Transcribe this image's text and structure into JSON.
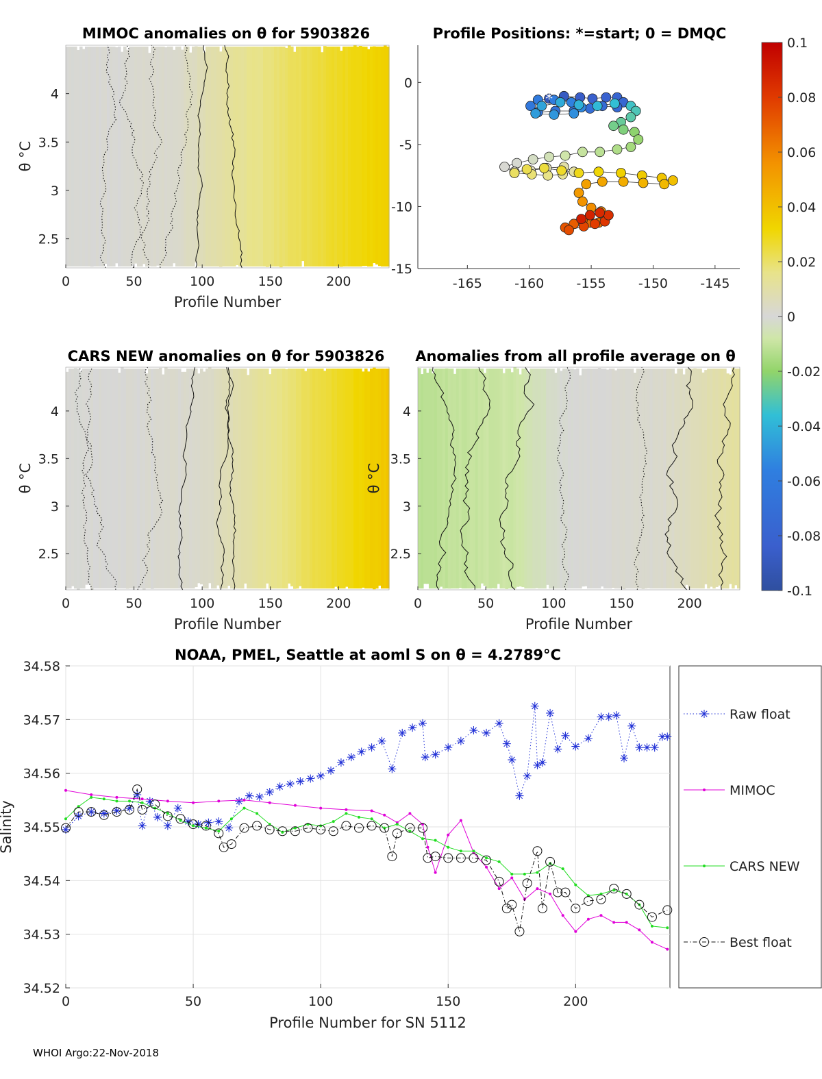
{
  "footer": "WHOI Argo:22-Nov-2018",
  "colorbar": {
    "ticks": [
      "0.1",
      "0.08",
      "0.06",
      "0.04",
      "0.02",
      "0",
      "-0.02",
      "-0.04",
      "-0.06",
      "-0.08",
      "-0.1"
    ],
    "range": [
      -0.1,
      0.1
    ]
  },
  "chart_data": [
    {
      "type": "heatmap",
      "title": "MIMOC anomalies on θ  for 5903826",
      "xlabel": "Profile Number",
      "ylabel": "θ °C",
      "xlim": [
        0,
        237
      ],
      "ylim": [
        2.2,
        4.5
      ],
      "xticks": [
        "0",
        "50",
        "100",
        "150",
        "200"
      ],
      "yticks": [
        "4",
        "3.5",
        "3",
        "2.5"
      ],
      "anomaly_gradient": {
        "profiles": [
          0,
          80,
          120,
          237
        ],
        "values": [
          0.0,
          0.002,
          0.012,
          0.035
        ]
      }
    },
    {
      "type": "scatter",
      "title": "Profile Positions: *=start; 0 = DMQC",
      "xlabel": "",
      "ylabel": "",
      "xlim": [
        -169,
        -143
      ],
      "ylim": [
        -15,
        3
      ],
      "xticks": [
        "-165",
        "-160",
        "-155",
        "-150",
        "-145"
      ],
      "yticks": [
        "0",
        "-5",
        "-10",
        "-15"
      ],
      "track": [
        [
          -158.4,
          -1.3
        ],
        [
          -157.2,
          -1.1
        ],
        [
          -155.9,
          -1.2
        ],
        [
          -154.9,
          -1.3
        ],
        [
          -153.8,
          -1.2
        ],
        [
          -152.9,
          -1.2
        ],
        [
          -152.4,
          -1.6
        ],
        [
          -152.9,
          -2.0
        ],
        [
          -154.1,
          -1.9
        ],
        [
          -155.1,
          -2.1
        ],
        [
          -156.4,
          -2.3
        ],
        [
          -157.9,
          -2.3
        ],
        [
          -159.3,
          -2.4
        ],
        [
          -159.9,
          -1.9
        ],
        [
          -159.3,
          -1.4
        ],
        [
          -158.0,
          -1.4
        ],
        [
          -156.6,
          -1.6
        ],
        [
          -155.8,
          -2.0
        ],
        [
          -156.4,
          -2.5
        ],
        [
          -158.0,
          -2.6
        ],
        [
          -159.5,
          -2.5
        ],
        [
          -159.0,
          -1.9
        ],
        [
          -157.5,
          -1.6
        ],
        [
          -156.0,
          -1.8
        ],
        [
          -154.5,
          -1.9
        ],
        [
          -153.1,
          -1.7
        ],
        [
          -151.8,
          -1.9
        ],
        [
          -151.4,
          -2.3
        ],
        [
          -151.8,
          -2.8
        ],
        [
          -152.6,
          -3.2
        ],
        [
          -153.2,
          -3.5
        ],
        [
          -152.4,
          -3.8
        ],
        [
          -151.5,
          -4.0
        ],
        [
          -151.2,
          -4.6
        ],
        [
          -151.8,
          -5.2
        ],
        [
          -152.9,
          -5.4
        ],
        [
          -154.3,
          -5.6
        ],
        [
          -155.7,
          -5.6
        ],
        [
          -157.1,
          -5.9
        ],
        [
          -158.4,
          -6.0
        ],
        [
          -159.7,
          -6.2
        ],
        [
          -161.0,
          -6.5
        ],
        [
          -162.0,
          -6.8
        ],
        [
          -161.2,
          -7.2
        ],
        [
          -159.9,
          -7.1
        ],
        [
          -158.6,
          -6.9
        ],
        [
          -157.2,
          -6.8
        ],
        [
          -156.4,
          -7.2
        ],
        [
          -157.3,
          -7.4
        ],
        [
          -158.5,
          -7.5
        ],
        [
          -159.8,
          -7.4
        ],
        [
          -161.2,
          -7.3
        ],
        [
          -160.2,
          -7.0
        ],
        [
          -158.8,
          -6.9
        ],
        [
          -157.4,
          -7.1
        ],
        [
          -156.0,
          -7.3
        ],
        [
          -154.4,
          -7.2
        ],
        [
          -152.6,
          -7.3
        ],
        [
          -150.9,
          -7.5
        ],
        [
          -149.3,
          -7.7
        ],
        [
          -148.4,
          -7.9
        ],
        [
          -149.1,
          -8.2
        ],
        [
          -150.8,
          -8.1
        ],
        [
          -152.4,
          -8.0
        ],
        [
          -154.1,
          -8.0
        ],
        [
          -155.4,
          -8.2
        ],
        [
          -156.0,
          -8.9
        ],
        [
          -155.7,
          -9.6
        ],
        [
          -155.0,
          -10.1
        ],
        [
          -154.2,
          -10.4
        ],
        [
          -153.9,
          -10.9
        ],
        [
          -154.4,
          -11.3
        ],
        [
          -155.1,
          -11.3
        ],
        [
          -155.7,
          -11.1
        ],
        [
          -156.4,
          -11.4
        ],
        [
          -157.1,
          -11.7
        ],
        [
          -156.8,
          -11.9
        ],
        [
          -155.6,
          -11.6
        ],
        [
          -154.7,
          -11.4
        ],
        [
          -153.9,
          -11.2
        ],
        [
          -153.6,
          -10.7
        ],
        [
          -154.3,
          -10.5
        ],
        [
          -155.1,
          -10.7
        ],
        [
          -155.8,
          -11.0
        ]
      ]
    },
    {
      "type": "heatmap",
      "title": "CARS NEW anomalies on θ for 5903826",
      "xlabel": "Profile Number",
      "ylabel": "θ °C",
      "xlim": [
        0,
        237
      ],
      "ylim": [
        2.12,
        4.46
      ],
      "xticks": [
        "0",
        "50",
        "100",
        "150",
        "200"
      ],
      "yticks": [
        "4",
        "3.5",
        "3",
        "2.5"
      ],
      "anomaly_gradient": {
        "profiles": [
          0,
          100,
          140,
          237
        ],
        "values": [
          0.0,
          0.002,
          0.012,
          0.038
        ]
      }
    },
    {
      "type": "heatmap",
      "title": "Anomalies from all profile average on θ",
      "xlabel": "Profile Number",
      "ylabel": "θ °C",
      "xlim": [
        0,
        237
      ],
      "ylim": [
        2.12,
        4.46
      ],
      "xticks": [
        "0",
        "50",
        "100",
        "150",
        "200"
      ],
      "yticks": [
        "4",
        "3.5",
        "3",
        "2.5"
      ],
      "anomaly_gradient": {
        "profiles": [
          0,
          40,
          75,
          110,
          180,
          237
        ],
        "values": [
          -0.012,
          -0.01,
          -0.008,
          0.0,
          0.002,
          0.012
        ]
      }
    },
    {
      "type": "line",
      "title": "NOAA, PMEL, Seattle at aoml S on θ = 4.2789°C",
      "xlabel": "Profile Number for SN 5112",
      "ylabel": "Salinity",
      "xlim": [
        0,
        237
      ],
      "ylim": [
        34.52,
        34.58
      ],
      "xticks": [
        "0",
        "50",
        "100",
        "150",
        "200"
      ],
      "yticks": [
        "34.58",
        "34.57",
        "34.56",
        "34.55",
        "34.54",
        "34.53",
        "34.52"
      ],
      "legend": [
        "Raw float",
        "MIMOC",
        "CARS NEW",
        "Best float"
      ],
      "series": [
        {
          "name": "Raw float",
          "x": [
            0,
            5,
            10,
            15,
            20,
            25,
            28,
            30,
            33,
            36,
            40,
            44,
            48,
            52,
            56,
            60,
            64,
            68,
            72,
            76,
            80,
            84,
            88,
            92,
            96,
            100,
            104,
            108,
            112,
            116,
            120,
            124,
            128,
            132,
            136,
            140,
            141,
            145,
            150,
            155,
            160,
            165,
            170,
            173,
            175,
            178,
            181,
            184,
            185,
            187,
            190,
            193,
            196,
            200,
            205,
            210,
            213,
            216,
            219,
            222,
            225,
            228,
            231,
            234,
            236
          ],
          "y": [
            34.5495,
            34.552,
            34.5528,
            34.5525,
            34.553,
            34.5535,
            34.556,
            34.5502,
            34.5548,
            34.5518,
            34.5502,
            34.5535,
            34.551,
            34.5505,
            34.5508,
            34.551,
            34.5498,
            34.5548,
            34.5558,
            34.5556,
            34.5565,
            34.5575,
            34.558,
            34.5585,
            34.559,
            34.5595,
            34.5605,
            34.562,
            34.563,
            34.564,
            34.5648,
            34.566,
            34.5608,
            34.5675,
            34.5685,
            34.5693,
            34.563,
            34.5635,
            34.5648,
            34.566,
            34.568,
            34.5675,
            34.5693,
            34.5655,
            34.5625,
            34.5558,
            34.5595,
            34.5725,
            34.5615,
            34.562,
            34.5712,
            34.5645,
            34.567,
            34.565,
            34.5665,
            34.5705,
            34.5705,
            34.5708,
            34.5628,
            34.5688,
            34.5648,
            34.5648,
            34.5648,
            34.5668,
            34.5668
          ]
        },
        {
          "name": "MIMOC",
          "x": [
            0,
            10,
            20,
            30,
            40,
            50,
            60,
            70,
            80,
            90,
            100,
            110,
            120,
            125,
            130,
            135,
            140,
            142,
            145,
            150,
            155,
            160,
            165,
            170,
            175,
            180,
            185,
            190,
            195,
            200,
            205,
            210,
            215,
            220,
            225,
            230,
            236
          ],
          "y": [
            34.5568,
            34.556,
            34.5555,
            34.5552,
            34.5548,
            34.5545,
            34.5548,
            34.555,
            34.5545,
            34.554,
            34.5535,
            34.5532,
            34.553,
            34.5522,
            34.5508,
            34.5525,
            34.5505,
            34.5462,
            34.5415,
            34.5485,
            34.5512,
            34.5452,
            34.5425,
            34.5385,
            34.5405,
            34.5365,
            34.5385,
            34.5375,
            34.5335,
            34.5305,
            34.5328,
            34.5335,
            34.5322,
            34.5322,
            34.5308,
            34.5285,
            34.5272
          ]
        },
        {
          "name": "CARS NEW",
          "x": [
            0,
            5,
            10,
            15,
            20,
            25,
            30,
            35,
            40,
            45,
            50,
            55,
            60,
            65,
            70,
            75,
            80,
            85,
            90,
            95,
            100,
            105,
            110,
            115,
            120,
            125,
            130,
            135,
            140,
            145,
            150,
            155,
            160,
            165,
            170,
            175,
            180,
            185,
            190,
            195,
            200,
            205,
            210,
            215,
            220,
            225,
            230,
            236
          ],
          "y": [
            34.5515,
            34.5538,
            34.5555,
            34.5552,
            34.5548,
            34.5548,
            34.5545,
            34.5535,
            34.5525,
            34.5512,
            34.5502,
            34.5498,
            34.5492,
            34.5515,
            34.5535,
            34.5525,
            34.5505,
            34.549,
            34.5498,
            34.5505,
            34.5502,
            34.551,
            34.5525,
            34.5518,
            34.5515,
            34.5498,
            34.5505,
            34.5492,
            34.5478,
            34.5475,
            34.5462,
            34.5455,
            34.5455,
            34.5442,
            34.5435,
            34.5412,
            34.5412,
            34.5415,
            34.5432,
            34.5422,
            34.5392,
            34.5372,
            34.5375,
            34.5382,
            34.5375,
            34.5355,
            34.5315,
            34.5312
          ]
        },
        {
          "name": "Best float",
          "x": [
            0,
            5,
            10,
            15,
            20,
            25,
            28,
            30,
            35,
            40,
            45,
            50,
            55,
            60,
            62,
            65,
            70,
            75,
            80,
            85,
            90,
            95,
            100,
            105,
            110,
            115,
            120,
            125,
            128,
            130,
            135,
            140,
            142,
            145,
            150,
            155,
            160,
            165,
            170,
            173,
            175,
            178,
            181,
            185,
            187,
            190,
            193,
            196,
            200,
            205,
            210,
            215,
            220,
            225,
            230,
            236
          ],
          "y": [
            34.5498,
            34.5528,
            34.5528,
            34.5522,
            34.5528,
            34.5532,
            34.557,
            34.5532,
            34.5542,
            34.552,
            34.5515,
            34.5505,
            34.5502,
            34.5488,
            34.5462,
            34.5468,
            34.5498,
            34.5502,
            34.5495,
            34.5492,
            34.5492,
            34.5498,
            34.5495,
            34.5492,
            34.5502,
            34.5498,
            34.5502,
            34.5498,
            34.5445,
            34.5488,
            34.5498,
            34.5498,
            34.5442,
            34.5445,
            34.5442,
            34.5442,
            34.5442,
            34.5438,
            34.5398,
            34.5348,
            34.5355,
            34.5305,
            34.5395,
            34.5455,
            34.5348,
            34.5435,
            34.5378,
            34.5378,
            34.5348,
            34.5362,
            34.5365,
            34.5385,
            34.5375,
            34.5355,
            34.5332,
            34.5345
          ]
        }
      ]
    }
  ]
}
